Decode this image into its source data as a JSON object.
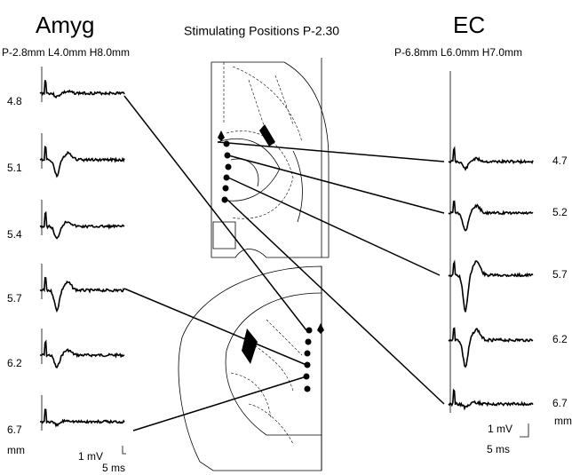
{
  "left": {
    "title": "Amyg",
    "coords": "P-2.8mm L4.0mm H8.0mm",
    "depths": [
      "4.8",
      "5.1",
      "5.4",
      "5.7",
      "6.2",
      "6.7"
    ],
    "unit": "mm",
    "scale_v": "1 mV",
    "scale_t": "5 ms"
  },
  "center": {
    "title": "Stimulating Positions P-2.30"
  },
  "right": {
    "title": "EC",
    "coords": "P-6.8mm L6.0mm H7.0mm",
    "depths": [
      "4.7",
      "5.2",
      "5.7",
      "6.2",
      "6.7"
    ],
    "unit": "mm",
    "scale_v": "1 mV",
    "scale_t": "5 ms"
  }
}
